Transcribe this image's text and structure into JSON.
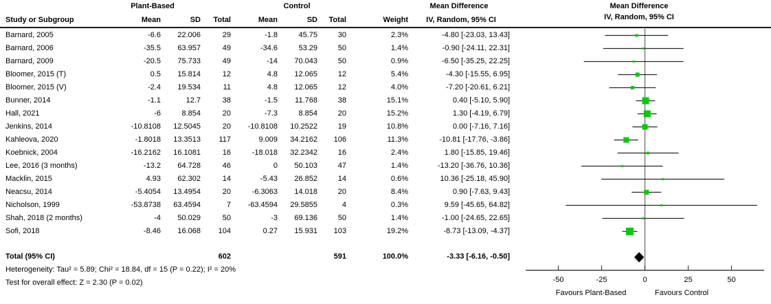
{
  "chart_data": {
    "type": "scatter",
    "subtype": "forest-plot-meta-analysis",
    "effect_measure": "Mean Difference, IV, Random, 95% CI",
    "group_headers": {
      "experimental": "Plant-Based",
      "control": "Control",
      "effect_text_col_line1": "Mean Difference",
      "plot_col_line1": "Mean Difference",
      "plot_col_line2": "IV, Random, 95% CI"
    },
    "columns": {
      "study": "Study or Subgroup",
      "mean": "Mean",
      "sd": "SD",
      "total": "Total",
      "weight": "Weight",
      "effect": "IV, Random, 95% CI"
    },
    "studies": [
      {
        "name": "Barnard, 2005",
        "e_mean": "-6.6",
        "e_sd": "22.006",
        "e_n": "29",
        "c_mean": "-1.8",
        "c_sd": "45.75",
        "c_n": "30",
        "weight": "2.3%",
        "estimate": "-4.80 [-23.03, 13.43]",
        "md": -4.8,
        "lo": -23.03,
        "hi": 13.43,
        "w": 2.3
      },
      {
        "name": "Barnard, 2006",
        "e_mean": "-35.5",
        "e_sd": "63.957",
        "e_n": "49",
        "c_mean": "-34.6",
        "c_sd": "53.29",
        "c_n": "50",
        "weight": "1.4%",
        "estimate": "-0.90 [-24.11, 22.31]",
        "md": -0.9,
        "lo": -24.11,
        "hi": 22.31,
        "w": 1.4
      },
      {
        "name": "Barnard, 2009",
        "e_mean": "-20.5",
        "e_sd": "75.733",
        "e_n": "49",
        "c_mean": "-14",
        "c_sd": "70.043",
        "c_n": "50",
        "weight": "0.9%",
        "estimate": "-6.50 [-35.25, 22.25]",
        "md": -6.5,
        "lo": -35.25,
        "hi": 22.25,
        "w": 0.9
      },
      {
        "name": "Bloomer, 2015 (T)",
        "e_mean": "0.5",
        "e_sd": "15.814",
        "e_n": "12",
        "c_mean": "4.8",
        "c_sd": "12.065",
        "c_n": "12",
        "weight": "5.4%",
        "estimate": "-4.30 [-15.55, 6.95]",
        "md": -4.3,
        "lo": -15.55,
        "hi": 6.95,
        "w": 5.4
      },
      {
        "name": "Bloomer, 2015 (V)",
        "e_mean": "-2.4",
        "e_sd": "19.534",
        "e_n": "11",
        "c_mean": "4.8",
        "c_sd": "12.065",
        "c_n": "12",
        "weight": "4.0%",
        "estimate": "-7.20 [-20.61, 6.21]",
        "md": -7.2,
        "lo": -20.61,
        "hi": 6.21,
        "w": 4.0
      },
      {
        "name": "Bunner, 2014",
        "e_mean": "-1.1",
        "e_sd": "12.7",
        "e_n": "38",
        "c_mean": "-1.5",
        "c_sd": "11.768",
        "c_n": "38",
        "weight": "15.1%",
        "estimate": "0.40 [-5.10, 5.90]",
        "md": 0.4,
        "lo": -5.1,
        "hi": 5.9,
        "w": 15.1
      },
      {
        "name": "Hall, 2021",
        "e_mean": "-6",
        "e_sd": "8.854",
        "e_n": "20",
        "c_mean": "-7.3",
        "c_sd": "8.854",
        "c_n": "20",
        "weight": "15.2%",
        "estimate": "1.30 [-4.19, 6.79]",
        "md": 1.3,
        "lo": -4.19,
        "hi": 6.79,
        "w": 15.2
      },
      {
        "name": "Jenkins, 2014",
        "e_mean": "-10.8108",
        "e_sd": "12.5045",
        "e_n": "20",
        "c_mean": "-10.8108",
        "c_sd": "10.2522",
        "c_n": "19",
        "weight": "10.8%",
        "estimate": "0.00 [-7.16, 7.16]",
        "md": 0.0,
        "lo": -7.16,
        "hi": 7.16,
        "w": 10.8
      },
      {
        "name": "Kahleova, 2020",
        "e_mean": "-1.8018",
        "e_sd": "13.3513",
        "e_n": "117",
        "c_mean": "9.009",
        "c_sd": "34.2162",
        "c_n": "106",
        "weight": "11.3%",
        "estimate": "-10.81 [-17.76, -3.86]",
        "md": -10.81,
        "lo": -17.76,
        "hi": -3.86,
        "w": 11.3
      },
      {
        "name": "Koebnick, 2004",
        "e_mean": "-16.2162",
        "e_sd": "16.1081",
        "e_n": "16",
        "c_mean": "-18.018",
        "c_sd": "32.2342",
        "c_n": "16",
        "weight": "2.4%",
        "estimate": "1.80 [-15.85, 19.46]",
        "md": 1.8,
        "lo": -15.85,
        "hi": 19.46,
        "w": 2.4
      },
      {
        "name": "Lee, 2016 (3 months)",
        "e_mean": "-13.2",
        "e_sd": "64.728",
        "e_n": "46",
        "c_mean": "0",
        "c_sd": "50.103",
        "c_n": "47",
        "weight": "1.4%",
        "estimate": "-13.20 [-36.76, 10.36]",
        "md": -13.2,
        "lo": -36.76,
        "hi": 10.36,
        "w": 1.4
      },
      {
        "name": "Macklin, 2015",
        "e_mean": "4.93",
        "e_sd": "62.302",
        "e_n": "14",
        "c_mean": "-5.43",
        "c_sd": "26.852",
        "c_n": "14",
        "weight": "0.6%",
        "estimate": "10.36 [-25.18, 45.90]",
        "md": 10.36,
        "lo": -25.18,
        "hi": 45.9,
        "w": 0.6
      },
      {
        "name": "Neacsu, 2014",
        "e_mean": "-5.4054",
        "e_sd": "13.4954",
        "e_n": "20",
        "c_mean": "-6.3063",
        "c_sd": "14.018",
        "c_n": "20",
        "weight": "8.4%",
        "estimate": "0.90 [-7.63, 9.43]",
        "md": 0.9,
        "lo": -7.63,
        "hi": 9.43,
        "w": 8.4
      },
      {
        "name": "Nicholson, 1999",
        "e_mean": "-53.8738",
        "e_sd": "63.4594",
        "e_n": "7",
        "c_mean": "-63.4594",
        "c_sd": "29.5855",
        "c_n": "4",
        "weight": "0.3%",
        "estimate": "9.59 [-45.65, 64.82]",
        "md": 9.59,
        "lo": -45.65,
        "hi": 64.82,
        "w": 0.3
      },
      {
        "name": "Shah, 2018 (2 months)",
        "e_mean": "-4",
        "e_sd": "50.029",
        "e_n": "50",
        "c_mean": "-3",
        "c_sd": "69.136",
        "c_n": "50",
        "weight": "1.4%",
        "estimate": "-1.00 [-24.65, 22.65]",
        "md": -1.0,
        "lo": -24.65,
        "hi": 22.65,
        "w": 1.4
      },
      {
        "name": "Sofi, 2018",
        "e_mean": "-8.46",
        "e_sd": "16.068",
        "e_n": "104",
        "c_mean": "0.27",
        "c_sd": "15.931",
        "c_n": "103",
        "weight": "19.2%",
        "estimate": "-8.73 [-13.09, -4.37]",
        "md": -8.73,
        "lo": -13.09,
        "hi": -4.37,
        "w": 19.2
      }
    ],
    "total": {
      "name": "Total (95% CI)",
      "e_n": "602",
      "c_n": "591",
      "weight": "100.0%",
      "estimate": "-3.33 [-6.16, -0.50]",
      "md": -3.33,
      "lo": -6.16,
      "hi": -0.5
    },
    "heterogeneity": "Heterogeneity: Tau² = 5.89; Chi² = 18.84, df = 15 (P = 0.22); I² = 20%",
    "overall_effect": "Test for overall effect: Z = 2.30 (P = 0.02)",
    "x_axis": {
      "ticks": [
        -50,
        -25,
        0,
        25,
        50
      ],
      "min": -68,
      "max": 69,
      "favours_left": "Favours Plant-Based",
      "favours_right": "Favours Control"
    },
    "colors": {
      "marker": "#00CC00",
      "diamond": "#000000",
      "zero_line": "#7F7F7F",
      "axis_line": "#404040",
      "ci_line": "#262626"
    }
  }
}
